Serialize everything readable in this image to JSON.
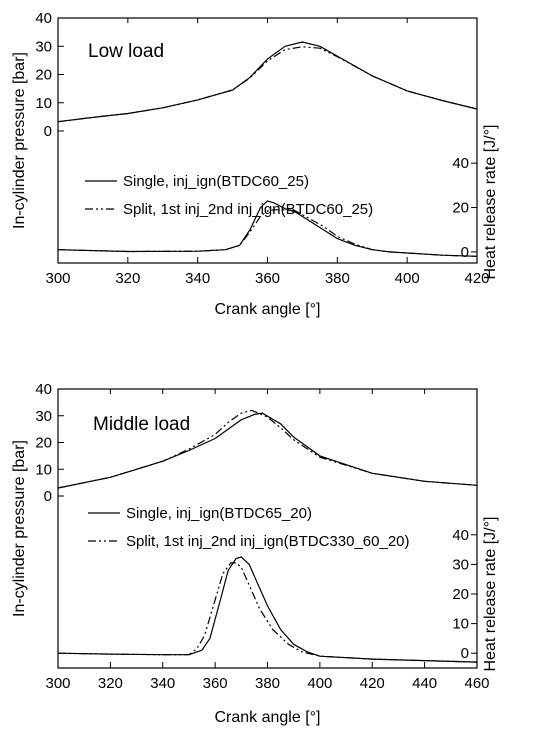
{
  "chart_data": [
    {
      "type": "line",
      "annotation": "Low load",
      "xlabel": "Crank angle [°]",
      "ylabel": "In-cylinder pressure [bar]",
      "y2label": "Heat release rate [J/°]",
      "xlim": [
        300,
        420
      ],
      "x_ticks": [
        300,
        320,
        340,
        360,
        380,
        400,
        420
      ],
      "ylim": [
        0,
        40
      ],
      "y_ticks": [
        0,
        10,
        20,
        30,
        40
      ],
      "y2lim": [
        -5,
        50
      ],
      "y2_ticks": [
        0,
        20,
        40
      ],
      "grid": false,
      "legend_position": "middle",
      "series": [
        {
          "name": "Single, inj_ign(BTDC60_25)",
          "axis": "pressure",
          "style": "solid",
          "x": [
            300,
            310,
            320,
            330,
            340,
            350,
            355,
            360,
            365,
            370,
            375,
            380,
            390,
            400,
            410,
            420
          ],
          "y": [
            3.3,
            4.8,
            6.2,
            8.2,
            11.0,
            14.5,
            19.0,
            25.5,
            30.0,
            31.5,
            30.0,
            26.5,
            19.5,
            14.2,
            10.8,
            7.8
          ]
        },
        {
          "name": "Split, 1st inj_2nd inj_ign(BTDC60_25)",
          "axis": "pressure",
          "style": "dash-dot-dot",
          "x": [
            300,
            310,
            320,
            330,
            340,
            350,
            355,
            360,
            365,
            370,
            375,
            380,
            390,
            400,
            410,
            420
          ],
          "y": [
            3.3,
            4.8,
            6.2,
            8.2,
            11.0,
            14.5,
            18.8,
            24.8,
            28.8,
            29.8,
            29.3,
            26.3,
            19.5,
            14.2,
            10.8,
            7.8
          ]
        },
        {
          "name": "Single, inj_ign(BTDC60_25)",
          "axis": "heat_release",
          "style": "solid",
          "x": [
            300,
            320,
            340,
            348,
            352,
            355,
            358,
            360,
            362,
            365,
            368,
            372,
            376,
            380,
            385,
            390,
            395,
            400,
            410,
            420
          ],
          "y": [
            1.0,
            0.2,
            0.3,
            1.0,
            3.0,
            10.0,
            20.0,
            23.0,
            22.0,
            19.5,
            18.0,
            14.0,
            10.0,
            6.0,
            3.0,
            1.0,
            0.0,
            -0.5,
            -1.5,
            -2.0
          ]
        },
        {
          "name": "Split, 1st inj_2nd inj_ign(BTDC60_25)",
          "axis": "heat_release",
          "style": "dash-dot-dot",
          "x": [
            300,
            320,
            340,
            348,
            352,
            355,
            358,
            360,
            362,
            365,
            368,
            372,
            376,
            380,
            385,
            390,
            395,
            400,
            410,
            420
          ],
          "y": [
            1.0,
            0.2,
            0.3,
            1.0,
            3.0,
            9.0,
            16.0,
            18.5,
            19.0,
            19.0,
            18.5,
            15.0,
            11.5,
            7.0,
            3.5,
            1.0,
            0.0,
            -0.5,
            -1.5,
            -2.0
          ]
        }
      ]
    },
    {
      "type": "line",
      "annotation": "Middle load",
      "xlabel": "Crank angle [°]",
      "ylabel": "In-cylinder pressure [bar]",
      "y2label": "Heat release rate [J/°]",
      "xlim": [
        300,
        460
      ],
      "x_ticks": [
        300,
        320,
        340,
        360,
        380,
        400,
        420,
        440,
        460
      ],
      "ylim": [
        0,
        40
      ],
      "y_ticks": [
        0,
        10,
        20,
        30,
        40
      ],
      "y2lim": [
        -5,
        45
      ],
      "y2_ticks": [
        0,
        10,
        20,
        30,
        40
      ],
      "grid": false,
      "legend_position": "middle",
      "series": [
        {
          "name": "Single, inj_ign(BTDC65_20)",
          "axis": "pressure",
          "style": "solid",
          "x": [
            300,
            320,
            340,
            350,
            360,
            365,
            370,
            375,
            378,
            385,
            390,
            400,
            420,
            440,
            460
          ],
          "y": [
            3.0,
            7.0,
            13.0,
            17.0,
            21.5,
            25.0,
            28.5,
            30.5,
            31.0,
            27.0,
            22.0,
            15.0,
            8.5,
            5.5,
            4.0
          ]
        },
        {
          "name": "Split, 1st inj_2nd inj_ign(BTDC330_60_20)",
          "axis": "pressure",
          "style": "dash-dot-dot",
          "x": [
            300,
            320,
            340,
            350,
            360,
            365,
            370,
            374,
            380,
            385,
            390,
            400,
            420,
            440,
            460
          ],
          "y": [
            3.0,
            7.0,
            13.0,
            17.5,
            23.0,
            27.5,
            31.0,
            32.0,
            29.5,
            25.5,
            21.0,
            14.5,
            8.5,
            5.5,
            4.0
          ]
        },
        {
          "name": "Single, inj_ign(BTDC65_20)",
          "axis": "heat_release",
          "style": "solid",
          "x": [
            300,
            320,
            340,
            350,
            355,
            358,
            362,
            365,
            368,
            370,
            373,
            376,
            380,
            385,
            390,
            395,
            400,
            420,
            440,
            460
          ],
          "y": [
            0.0,
            -0.3,
            -0.5,
            -0.5,
            1.0,
            5.0,
            18.0,
            28.0,
            32.0,
            32.5,
            30.0,
            24.0,
            16.0,
            8.0,
            3.0,
            0.5,
            -1.0,
            -2.0,
            -2.5,
            -3.0
          ]
        },
        {
          "name": "Split, 1st inj_2nd inj_ign(BTDC330_60_20)",
          "axis": "heat_release",
          "style": "dash-dot-dot",
          "x": [
            300,
            320,
            340,
            350,
            353,
            356,
            360,
            363,
            366,
            368,
            370,
            373,
            377,
            382,
            388,
            393,
            400,
            420,
            440,
            460
          ],
          "y": [
            0.0,
            -0.3,
            -0.5,
            -0.5,
            1.5,
            6.0,
            18.0,
            27.0,
            30.5,
            30.5,
            29.0,
            23.0,
            15.0,
            8.0,
            3.0,
            0.5,
            -1.0,
            -2.0,
            -2.5,
            -3.0
          ]
        }
      ]
    }
  ]
}
